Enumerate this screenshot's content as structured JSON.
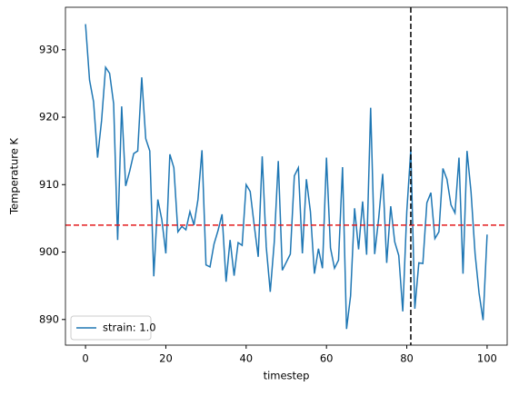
{
  "chart_data": {
    "type": "line",
    "xlabel": "timestep",
    "ylabel": "Temperature K",
    "x": [
      0,
      1,
      2,
      3,
      4,
      5,
      6,
      7,
      8,
      9,
      10,
      11,
      12,
      13,
      14,
      15,
      16,
      17,
      18,
      19,
      20,
      21,
      22,
      23,
      24,
      25,
      26,
      27,
      28,
      29,
      30,
      31,
      32,
      33,
      34,
      35,
      36,
      37,
      38,
      39,
      40,
      41,
      42,
      43,
      44,
      45,
      46,
      47,
      48,
      49,
      50,
      51,
      52,
      53,
      54,
      55,
      56,
      57,
      58,
      59,
      60,
      61,
      62,
      63,
      64,
      65,
      66,
      67,
      68,
      69,
      70,
      71,
      72,
      73,
      74,
      75,
      76,
      77,
      78,
      79,
      80,
      81,
      82,
      83,
      84,
      85,
      86,
      87,
      88,
      89,
      90,
      91,
      92,
      93,
      94,
      95,
      96,
      97,
      98,
      99,
      100
    ],
    "series": [
      {
        "name": "strain: 1.0",
        "color": "#1f77b4",
        "values": [
          933.8,
          925.5,
          922.3,
          914,
          919.5,
          927.4,
          926.5,
          922,
          901.8,
          921.6,
          909.8,
          912,
          914.6,
          915,
          925.9,
          916.8,
          915,
          896.4,
          907.8,
          904.8,
          899.8,
          914.5,
          912.5,
          903,
          903.8,
          903.3,
          906,
          904,
          907.8,
          915.1,
          898.1,
          897.8,
          901.2,
          903.2,
          905.6,
          895.6,
          901.8,
          896.5,
          901.4,
          901,
          910,
          909,
          904,
          899.3,
          914.2,
          900.8,
          894.1,
          901.5,
          913.5,
          897.3,
          898.5,
          899.7,
          911.3,
          912.5,
          899.8,
          910.8,
          906,
          896.8,
          900.5,
          897.6,
          914,
          900.6,
          897.6,
          898.8,
          912.6,
          888.6,
          893.5,
          906.5,
          900.4,
          907.5,
          899.6,
          921.4,
          899.7,
          905,
          911.6,
          898.4,
          906.8,
          901.5,
          899.5,
          891.2,
          906,
          915.2,
          891.6,
          898.4,
          898.3,
          907.3,
          908.8,
          902,
          903,
          912.4,
          910.8,
          907,
          905.8,
          914,
          896.8,
          915,
          908.9,
          899.8,
          893.9,
          889.9,
          902.6
        ]
      }
    ],
    "reference_lines": [
      {
        "axis": "y",
        "value": 904,
        "color": "#e41a1c"
      },
      {
        "axis": "x",
        "value": 81,
        "color": "#000000"
      }
    ],
    "xlim": [
      -5,
      105
    ],
    "ylim": [
      886.2,
      936.3
    ],
    "xticks": [
      0,
      20,
      40,
      60,
      80,
      100
    ],
    "yticks": [
      890,
      900,
      910,
      920,
      930
    ],
    "legend": "lower left"
  }
}
